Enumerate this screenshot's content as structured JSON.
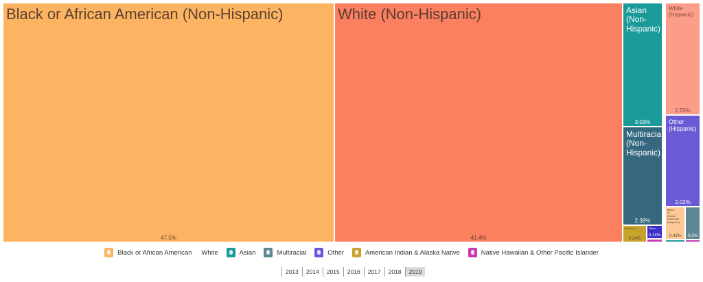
{
  "chart_data": {
    "type": "treemap",
    "tiles": [
      {
        "label": "Black or African American (Non-Hispanic)",
        "value": 47.5,
        "value_label": "47.5%",
        "color": "#fdb462"
      },
      {
        "label": "White (Non-Hispanic)",
        "value": 41.4,
        "value_label": "41.4%",
        "color": "#fb8060"
      },
      {
        "label": "Asian (Non-Hispanic)",
        "value": 3.03,
        "value_label": "3.03%",
        "color": "#1b9a9a"
      },
      {
        "label": "Multiracial (Non-Hispanic)",
        "value": 2.38,
        "value_label": "2.38%",
        "color": "#35687e"
      },
      {
        "label": "American Indian & Alaska Native",
        "value": 0.24,
        "value_label": "0.24%",
        "display_label": "America...",
        "color": "#c8a32b"
      },
      {
        "label": "Other (Non-Hispanic)",
        "value": 0.14,
        "value_label": "0.14%",
        "display_label": "Other...",
        "color": "#3c2fc9"
      },
      {
        "label": "Native Hawaiian & Other Pacific Islander (Non-Hispanic)",
        "value": 0.06,
        "value_label": "",
        "color": "#c43cb0"
      },
      {
        "label": "White (Hispanic)",
        "value": 2.53,
        "value_label": "2.53%",
        "color": "#fc9d89"
      },
      {
        "label": "Other (Hispanic)",
        "value": 2.02,
        "value_label": "2.02%",
        "color": "#6a5ad6"
      },
      {
        "label": "Black or African American (Hispanic)",
        "value": 0.43,
        "value_label": "0.43%",
        "color": "#fdca97"
      },
      {
        "label": "Multiracial (Hispanic)",
        "value": 0.3,
        "value_label": "0.3%",
        "color": "#5c8794"
      },
      {
        "label": "Asian (Hispanic)",
        "value": 0.02,
        "value_label": "",
        "color": "#1b9a9a"
      },
      {
        "label": "Native Hawaiian & Other Pacific Islander (Hispanic)",
        "value": 0.04,
        "value_label": "",
        "color": "#c43cb0"
      }
    ]
  },
  "legend": [
    {
      "label": "Black or African American",
      "color": "#fdb462"
    },
    {
      "label": "White",
      "color": ""
    },
    {
      "label": "Asian",
      "color": "#1b9a9a"
    },
    {
      "label": "Multiracial",
      "color": "#5c8794"
    },
    {
      "label": "Other",
      "color": "#6a5ad6"
    },
    {
      "label": "American Indian & Alaska Native",
      "color": "#c8a32b"
    },
    {
      "label": "Native Hawaiian & Other Pacific Islander",
      "color": "#c43cb0"
    }
  ],
  "years": [
    "2013",
    "2014",
    "2015",
    "2016",
    "2017",
    "2018",
    "2019"
  ],
  "selected_year": "2019"
}
